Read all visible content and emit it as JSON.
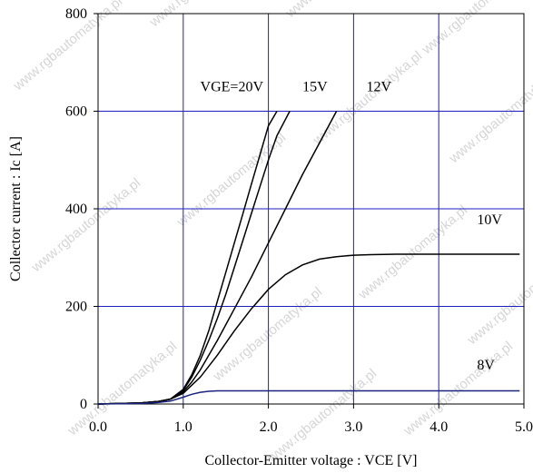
{
  "chart_data": {
    "type": "line",
    "title": "",
    "xlabel": "Collector-Emitter voltage : VCE [V]",
    "ylabel": "Collector current : Ic [A]",
    "xlim": [
      0,
      5
    ],
    "ylim": [
      0,
      800
    ],
    "x_ticks": [
      0,
      1,
      2,
      3,
      4,
      5
    ],
    "x_tick_labels": [
      "0.0",
      "1.0",
      "2.0",
      "3.0",
      "4.0",
      "5.0"
    ],
    "y_ticks": [
      0,
      200,
      400,
      600,
      800
    ],
    "y_tick_labels": [
      "0",
      "200",
      "400",
      "600",
      "800"
    ],
    "grid": true,
    "grid_color": "#1f1fbf",
    "watermark": "www.rgbautomatyka.pl",
    "series": [
      {
        "name": "VGE=20V",
        "label_at": [
          1.2,
          650
        ],
        "x": [
          0,
          0.5,
          0.7,
          0.85,
          1.0,
          1.1,
          1.2,
          1.3,
          1.4,
          1.5,
          1.6,
          1.7,
          1.8,
          1.9,
          2.0,
          2.1
        ],
        "y": [
          0,
          2,
          5,
          10,
          30,
          60,
          100,
          150,
          210,
          270,
          330,
          390,
          450,
          510,
          570,
          600
        ]
      },
      {
        "name": "15V",
        "label_at": [
          2.4,
          650
        ],
        "x": [
          0,
          0.5,
          0.7,
          0.85,
          1.0,
          1.1,
          1.2,
          1.3,
          1.4,
          1.5,
          1.6,
          1.7,
          1.8,
          1.9,
          2.0,
          2.1,
          2.25
        ],
        "y": [
          0,
          2,
          5,
          10,
          28,
          55,
          90,
          130,
          175,
          225,
          280,
          335,
          390,
          445,
          500,
          550,
          600
        ]
      },
      {
        "name": "12V",
        "label_at": [
          3.15,
          650
        ],
        "x": [
          0,
          0.5,
          0.7,
          0.85,
          1.0,
          1.1,
          1.2,
          1.4,
          1.6,
          1.8,
          2.0,
          2.2,
          2.4,
          2.6,
          2.8
        ],
        "y": [
          0,
          2,
          5,
          10,
          25,
          45,
          70,
          130,
          195,
          260,
          330,
          400,
          470,
          535,
          600
        ]
      },
      {
        "name": "10V",
        "label_at": [
          4.45,
          378
        ],
        "x": [
          0,
          0.5,
          0.7,
          0.85,
          1.0,
          1.2,
          1.4,
          1.6,
          1.8,
          2.0,
          2.2,
          2.4,
          2.6,
          2.8,
          3.0,
          3.2,
          3.5,
          4.0,
          4.5,
          4.95
        ],
        "y": [
          0,
          2,
          5,
          10,
          22,
          55,
          100,
          150,
          195,
          235,
          265,
          285,
          297,
          302,
          305,
          306,
          307,
          307,
          307,
          307
        ]
      },
      {
        "name": "8V",
        "label_at": [
          4.45,
          80
        ],
        "x": [
          0,
          0.5,
          0.7,
          0.85,
          1.0,
          1.1,
          1.2,
          1.3,
          1.4,
          2.0,
          3.0,
          4.0,
          4.95
        ],
        "y": [
          0,
          1,
          3,
          6,
          14,
          20,
          24,
          26,
          27,
          27,
          27,
          27,
          27
        ]
      }
    ]
  }
}
